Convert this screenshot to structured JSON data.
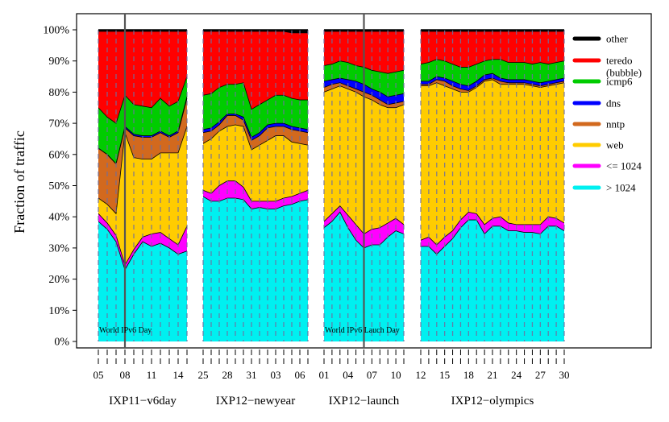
{
  "chart_data": {
    "type": "area",
    "ylabel": "Fraction of traffic",
    "ylim": [
      0,
      100
    ],
    "yticks": [
      {
        "value": 0,
        "label": "0%"
      },
      {
        "value": 10,
        "label": "10%"
      },
      {
        "value": 20,
        "label": "20%"
      },
      {
        "value": 30,
        "label": "30%"
      },
      {
        "value": 40,
        "label": "40%"
      },
      {
        "value": 50,
        "label": "50%"
      },
      {
        "value": 60,
        "label": "60%"
      },
      {
        "value": 70,
        "label": "70%"
      },
      {
        "value": 80,
        "label": "80%"
      },
      {
        "value": 90,
        "label": "90%"
      },
      {
        "value": 100,
        "label": "100%"
      }
    ],
    "categories_order": [
      "> 1024",
      "<= 1024",
      "web",
      "nntp",
      "dns",
      "icmp6",
      "teredo (bubble)",
      "other"
    ],
    "colors": {
      "> 1024": "#00f0f0",
      "<= 1024": "#ff00ff",
      "web": "#ffcc00",
      "nntp": "#d2691e",
      "dns": "#0000ff",
      "icmp6": "#00cc00",
      "teredo (bubble)": "#ff0000",
      "other": "#000000"
    },
    "legend": [
      {
        "key": "other",
        "lines": [
          "other"
        ]
      },
      {
        "key": "teredo (bubble)",
        "lines": [
          "teredo",
          "(bubble)"
        ]
      },
      {
        "key": "icmp6",
        "lines": [
          "icmp6"
        ]
      },
      {
        "key": "dns",
        "lines": [
          "dns"
        ]
      },
      {
        "key": "nntp",
        "lines": [
          "nntp"
        ]
      },
      {
        "key": "web",
        "lines": [
          "web"
        ]
      },
      {
        "key": "<= 1024",
        "lines": [
          "<= 1024"
        ]
      },
      {
        "key": "> 1024",
        "lines": [
          "> 1024"
        ]
      }
    ],
    "panels": [
      {
        "name": "IXP11−v6day",
        "ticks_total": 11,
        "tick_labels": [
          {
            "i": 0,
            "label": "05"
          },
          {
            "i": 3,
            "label": "08"
          },
          {
            "i": 6,
            "label": "11"
          },
          {
            "i": 9,
            "label": "14"
          }
        ],
        "cumulative": [
          [
            38.5,
            41,
            46,
            62,
            62,
            75,
            99.5,
            100
          ],
          [
            36,
            38,
            44,
            60,
            60,
            72,
            99.5,
            100
          ],
          [
            32,
            34,
            41,
            57,
            57,
            70,
            99.5,
            100
          ],
          [
            23,
            24.5,
            67,
            68.5,
            69,
            79,
            99.5,
            100
          ],
          [
            28,
            29.5,
            59,
            66,
            66.5,
            76,
            99.5,
            100
          ],
          [
            32,
            33.5,
            58.5,
            65.5,
            66,
            75.5,
            99.5,
            100
          ],
          [
            30.5,
            34.5,
            58.5,
            65.5,
            66,
            75,
            99.5,
            100
          ],
          [
            31.5,
            35,
            60.5,
            67,
            67.5,
            78,
            99.5,
            100
          ],
          [
            30,
            33,
            60.5,
            65.5,
            66,
            75.5,
            99.5,
            100
          ],
          [
            28,
            31,
            60.5,
            67,
            67.5,
            77,
            99.5,
            100
          ],
          [
            29,
            37,
            69,
            78,
            78.5,
            85,
            99.5,
            100
          ]
        ],
        "vline_index": 3,
        "annotation": "World IPv6 Day"
      },
      {
        "name": "IXP12−newyear",
        "ticks_total": 14,
        "tick_labels": [
          {
            "i": 0,
            "label": "25"
          },
          {
            "i": 3,
            "label": "28"
          },
          {
            "i": 6,
            "label": "31"
          },
          {
            "i": 9,
            "label": "03"
          },
          {
            "i": 12,
            "label": "06"
          }
        ],
        "cumulative": [
          [
            46.5,
            48.5,
            63.5,
            67,
            68,
            79,
            99.5,
            100
          ],
          [
            45,
            47.5,
            65,
            67.5,
            68.5,
            79.5,
            99.5,
            100
          ],
          [
            45,
            50,
            67.5,
            69.5,
            70.5,
            81.5,
            99.5,
            100
          ],
          [
            46,
            51.5,
            69,
            72.5,
            73,
            82.5,
            99.5,
            100
          ],
          [
            46,
            51.5,
            69.5,
            72.5,
            73,
            82.5,
            99.5,
            100
          ],
          [
            45.5,
            49.5,
            69,
            71,
            72,
            83,
            99.5,
            100
          ],
          [
            42.5,
            45,
            61.5,
            64.5,
            65.5,
            74.5,
            99.5,
            100
          ],
          [
            43,
            45,
            63,
            66,
            67,
            76,
            99.5,
            100
          ],
          [
            42.5,
            45,
            64.5,
            68.5,
            69.5,
            77.5,
            99.5,
            100
          ],
          [
            42.5,
            45,
            66,
            69,
            70,
            79,
            99.5,
            100
          ],
          [
            43.5,
            46,
            66,
            69,
            70,
            79,
            99.5,
            100
          ],
          [
            44,
            46.5,
            64,
            68,
            69,
            78,
            99,
            100
          ],
          [
            45,
            47.5,
            63.5,
            67.5,
            68.5,
            77.5,
            99,
            100
          ],
          [
            45.5,
            48.5,
            63,
            67,
            68,
            77.5,
            99,
            100
          ]
        ],
        "vline_index": null,
        "annotation": ""
      },
      {
        "name": "IXP12−launch",
        "ticks_total": 11,
        "tick_labels": [
          {
            "i": 0,
            "label": "01"
          },
          {
            "i": 3,
            "label": "04"
          },
          {
            "i": 6,
            "label": "07"
          },
          {
            "i": 9,
            "label": "10"
          }
        ],
        "cumulative": [
          [
            36.5,
            38.5,
            80,
            81.5,
            83.5,
            88.5,
            99.5,
            100
          ],
          [
            38.5,
            41,
            81,
            82.5,
            84,
            89,
            99.5,
            100
          ],
          [
            41.5,
            43.5,
            82,
            83,
            84.5,
            90,
            99.5,
            100
          ],
          [
            36.5,
            40.5,
            81,
            82,
            84,
            89.5,
            99.5,
            100
          ],
          [
            32.5,
            37.5,
            80,
            81,
            83.5,
            88.5,
            99.5,
            100
          ],
          [
            30,
            34.5,
            78.5,
            80,
            82.5,
            88,
            99.5,
            100
          ],
          [
            31,
            36,
            77.5,
            79,
            81,
            87,
            99.5,
            100
          ],
          [
            31,
            36.5,
            76,
            77.5,
            80,
            86.5,
            99.5,
            100
          ],
          [
            33.5,
            38,
            75,
            76,
            78.5,
            86,
            99.5,
            100
          ],
          [
            35.5,
            39.5,
            75,
            76.5,
            79,
            86.5,
            99.5,
            100
          ],
          [
            34.5,
            37.5,
            76,
            77,
            79.5,
            87,
            99.5,
            100
          ]
        ],
        "vline_index": 5,
        "annotation": "World IPv6 Lauch Day"
      },
      {
        "name": "IXP12−olympics",
        "ticks_total": 19,
        "tick_labels": [
          {
            "i": 0,
            "label": "12"
          },
          {
            "i": 3,
            "label": "15"
          },
          {
            "i": 6,
            "label": "18"
          },
          {
            "i": 9,
            "label": "21"
          },
          {
            "i": 12,
            "label": "24"
          },
          {
            "i": 15,
            "label": "27"
          },
          {
            "i": 18,
            "label": "30"
          }
        ],
        "cumulative": [
          [
            30.5,
            32.5,
            82,
            82.5,
            83.5,
            89,
            99.5,
            100
          ],
          [
            30.5,
            33.5,
            82,
            82.5,
            83.5,
            89.5,
            99.5,
            100
          ],
          [
            28,
            31,
            83,
            84,
            85,
            90.5,
            99.5,
            100
          ],
          [
            30.5,
            33.5,
            82,
            83.5,
            84.5,
            90,
            99.5,
            100
          ],
          [
            33,
            35.5,
            81,
            82,
            83.5,
            89,
            99.5,
            100
          ],
          [
            36.5,
            39,
            80,
            81,
            82.5,
            88,
            99.5,
            100
          ],
          [
            39,
            41.5,
            80,
            80.5,
            82,
            88,
            99.5,
            100
          ],
          [
            39,
            41,
            81.5,
            82,
            83.5,
            89,
            99.5,
            100
          ],
          [
            34.5,
            37.5,
            83.5,
            84,
            85.5,
            90,
            99.5,
            100
          ],
          [
            37,
            39.5,
            84,
            84.5,
            86,
            90.5,
            99.5,
            100
          ],
          [
            37,
            40,
            82.5,
            83.5,
            84.5,
            90.5,
            99.5,
            100
          ],
          [
            35.5,
            38,
            82.5,
            83,
            84,
            89.5,
            99.5,
            100
          ],
          [
            35.5,
            37.5,
            82.5,
            83,
            84,
            89.5,
            99.5,
            100
          ],
          [
            35,
            37.5,
            82.5,
            83,
            84,
            89.5,
            99.5,
            100
          ],
          [
            35,
            37.5,
            82,
            82.5,
            83.5,
            89,
            99.5,
            100
          ],
          [
            34.5,
            37.5,
            81.5,
            82,
            83,
            89.5,
            99.5,
            100
          ],
          [
            37,
            40,
            82,
            82.5,
            83.5,
            89,
            99.5,
            100
          ],
          [
            37,
            39.5,
            82.5,
            83,
            84,
            89.5,
            99.5,
            100
          ],
          [
            35.5,
            38,
            83,
            83.5,
            84.5,
            90,
            99.5,
            100
          ]
        ],
        "vline_index": null,
        "annotation": ""
      }
    ]
  }
}
